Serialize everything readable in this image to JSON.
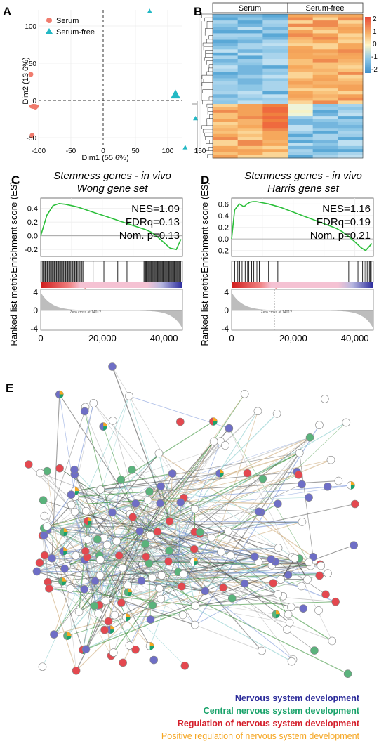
{
  "panels": {
    "A": {
      "letter": "A",
      "xlabel": "Dim1 (55.6%)",
      "ylabel": "Dim2 (13.6%)",
      "xticks": [
        "-100",
        "-50",
        "0",
        "50",
        "100",
        "150"
      ],
      "yticks": [
        "100",
        "50",
        "0",
        "-50"
      ],
      "legend": [
        {
          "label": "Serum",
          "color": "#f07c6e",
          "shape": "circle"
        },
        {
          "label": "Serum-free",
          "color": "#22b8c4",
          "shape": "triangle"
        }
      ]
    },
    "B": {
      "letter": "B",
      "groups": [
        "Serum",
        "Serum-free"
      ],
      "scale": [
        "2",
        "1",
        "0",
        "-1",
        "-2"
      ]
    },
    "C": {
      "letter": "C",
      "title_line1": "Stemness genes - in vivo",
      "title_line2": "Wong gene set",
      "nes": "NES=1.09",
      "fdr": "FDRq=0.13",
      "nom": "Nom. p=0.13",
      "es_label": "Enrichment score (ES)",
      "es_ticks": [
        "0.4",
        "0.2",
        "0.0",
        "-0.2"
      ],
      "rank_label": "Ranked list metric",
      "rank_ticks": [
        "4",
        "0",
        "-4"
      ],
      "left_group": "Serum-free",
      "right_group": "Serum",
      "zero_cross": "Zero cross at 14012",
      "xticks": [
        "0",
        "20,000",
        "40,000"
      ]
    },
    "D": {
      "letter": "D",
      "title_line1": "Stemness genes - in vivo",
      "title_line2": "Harris gene set",
      "nes": "NES=1.16",
      "fdr": "FDRq=0.19",
      "nom": "Nom. p=0.21",
      "es_label": "Enrichment score (ES)",
      "es_ticks": [
        "0.6",
        "0.4",
        "0.2",
        "0.0",
        "-0.2"
      ],
      "rank_label": "Ranked list metric",
      "rank_ticks": [
        "4",
        "0",
        "-4"
      ],
      "left_group": "Serum-free",
      "right_group": "Serum",
      "zero_cross": "Zero cross at 14012",
      "xticks": [
        "0",
        "20,000",
        "40,000"
      ]
    },
    "E": {
      "letter": "E",
      "legend": [
        {
          "label": "Nervous system development",
          "color": "#2b2b9a"
        },
        {
          "label": "Central nervous system development",
          "color": "#1aa36b"
        },
        {
          "label": "Regulation of nervous system development",
          "color": "#d4202c"
        },
        {
          "label": "Positive regulation of nervous system development",
          "color": "#f5a623"
        }
      ]
    }
  },
  "chart_data": [
    {
      "type": "scatter",
      "title": "",
      "xlabel": "Dim1 (55.6%)",
      "ylabel": "Dim2 (13.6%)",
      "xlim": [
        -120,
        160
      ],
      "ylim": [
        -70,
        120
      ],
      "series": [
        {
          "name": "Serum",
          "points": [
            [
              -112,
              35
            ],
            [
              -108,
              -8
            ],
            [
              -105,
              -9
            ],
            [
              -110,
              -47
            ]
          ]
        },
        {
          "name": "Serum-free",
          "points": [
            [
              72,
              120
            ],
            [
              112,
              8
            ],
            [
              143,
              -24
            ],
            [
              127,
              -63
            ]
          ]
        }
      ]
    },
    {
      "type": "line",
      "title": "Stemness genes - in vivo Wong gene set",
      "xlabel": "",
      "ylabel": "Enrichment score (ES)",
      "xlim": [
        0,
        46000
      ],
      "ylim": [
        -0.3,
        0.55
      ],
      "x": [
        0,
        2000,
        4000,
        6000,
        8000,
        10000,
        12000,
        14000,
        16000,
        18000,
        20000,
        22000,
        24000,
        26000,
        28000,
        30000,
        32000,
        34000,
        36000,
        38000,
        40000,
        42000,
        44000,
        45500
      ],
      "series": [
        {
          "values": [
            0.0,
            0.3,
            0.44,
            0.47,
            0.46,
            0.44,
            0.42,
            0.39,
            0.36,
            0.33,
            0.3,
            0.27,
            0.24,
            0.21,
            0.18,
            0.15,
            0.12,
            0.09,
            0.05,
            -0.02,
            -0.1,
            -0.18,
            -0.2,
            -0.05
          ]
        }
      ]
    },
    {
      "type": "line",
      "title": "Stemness genes - in vivo Harris gene set",
      "xlabel": "",
      "ylabel": "Enrichment score (ES)",
      "xlim": [
        0,
        46000
      ],
      "ylim": [
        -0.3,
        0.7
      ],
      "x": [
        0,
        1000,
        2500,
        4000,
        5000,
        6000,
        7000,
        8000,
        10000,
        12000,
        14000,
        16000,
        18000,
        20000,
        22000,
        24000,
        26000,
        28000,
        30000,
        32000,
        34000,
        36000,
        38000,
        40000,
        42000,
        43500,
        45500
      ],
      "series": [
        {
          "values": [
            0.0,
            0.5,
            0.6,
            0.55,
            0.6,
            0.63,
            0.64,
            0.64,
            0.62,
            0.6,
            0.57,
            0.54,
            0.5,
            0.46,
            0.42,
            0.38,
            0.34,
            0.3,
            0.26,
            0.22,
            0.18,
            0.12,
            0.04,
            -0.05,
            -0.15,
            -0.2,
            -0.08
          ]
        }
      ]
    }
  ]
}
